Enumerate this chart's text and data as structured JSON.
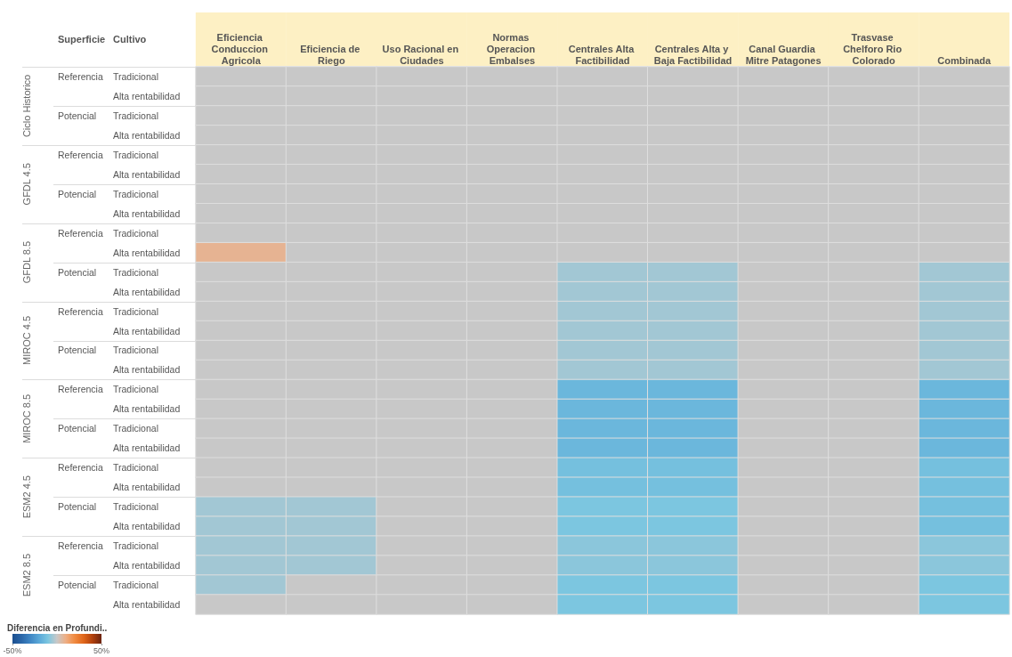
{
  "chart_data": {
    "type": "heatmap",
    "categories": [
      "Eficiencia Conduccion Agricola",
      "Eficiencia de Riego",
      "Uso Racional en Ciudades",
      "Normas Operacion Embalses",
      "Centrales Alta Factibilidad",
      "Centrales Alta y Baja Factibilidad",
      "Canal Guardia Mitre Patagones",
      "Trasvase Chelforo Rio Colorado",
      "Combinada"
    ],
    "y_categories": [
      "Tradicional",
      "Alta rentabilidad",
      "Tradicional",
      "Alta rentabilidad",
      "Tradicional",
      "Alta rentabilidad",
      "Tradicional",
      "Alta rentabilidad",
      "Tradicional",
      "Alta rentabilidad",
      "Tradicional",
      "Alta rentabilidad",
      "Tradicional",
      "Alta rentabilidad",
      "Tradicional",
      "Alta rentabilidad",
      "Tradicional",
      "Alta rentabilidad",
      "Tradicional",
      "Alta rentabilidad",
      "Tradicional",
      "Alta rentabilidad",
      "Tradicional",
      "Alta rentabilidad",
      "Tradicional",
      "Alta rentabilidad",
      "Tradicional",
      "Alta rentabilidad"
    ],
    "y2_categories": [
      "Referencia",
      null,
      "Potencial",
      null,
      "Referencia",
      null,
      "Potencial",
      null,
      "Referencia",
      null,
      "Potencial",
      null,
      "Referencia",
      null,
      "Potencial",
      null,
      "Referencia",
      null,
      "Potencial",
      null,
      "Referencia",
      null,
      "Potencial",
      null,
      "Referencia",
      null,
      "Potencial",
      null
    ],
    "ylabel": "Cultivo",
    "y2label": "Superficie",
    "annotations": [
      "Ciclo Historico",
      "GFDL 4.5",
      "GFDL 8.5",
      "MIROC 4.5",
      "MIROC 8.5",
      "ESM2 4.5",
      "ESM2 8.5"
    ],
    "cells": [
      [
        0,
        0,
        0,
        0,
        0,
        0,
        0,
        0,
        0
      ],
      [
        0,
        0,
        0,
        0,
        0,
        0,
        0,
        0,
        0
      ],
      [
        0,
        0,
        0,
        0,
        0,
        0,
        0,
        0,
        0
      ],
      [
        0,
        0,
        0,
        0,
        0,
        0,
        0,
        0,
        0
      ],
      [
        0,
        0,
        0,
        0,
        0,
        0,
        0,
        0,
        0
      ],
      [
        0,
        0,
        0,
        0,
        0,
        0,
        0,
        0,
        0
      ],
      [
        0,
        0,
        0,
        0,
        0,
        0,
        0,
        0,
        0
      ],
      [
        0,
        0,
        0,
        0,
        0,
        0,
        0,
        0,
        0
      ],
      [
        0,
        0,
        0,
        0,
        0,
        0,
        0,
        0,
        0
      ],
      [
        8,
        0,
        0,
        0,
        0,
        0,
        0,
        0,
        0
      ],
      [
        0,
        0,
        0,
        0,
        -5,
        -5,
        0,
        0,
        -5
      ],
      [
        0,
        0,
        0,
        0,
        -5,
        -5,
        0,
        0,
        -5
      ],
      [
        0,
        0,
        0,
        0,
        -5,
        -5,
        0,
        0,
        -5
      ],
      [
        0,
        0,
        0,
        0,
        -5,
        -5,
        0,
        0,
        -5
      ],
      [
        0,
        0,
        0,
        0,
        -5,
        -5,
        0,
        0,
        -5
      ],
      [
        0,
        0,
        0,
        0,
        -5,
        -5,
        0,
        0,
        -5
      ],
      [
        0,
        0,
        0,
        0,
        -15,
        -15,
        0,
        0,
        -15
      ],
      [
        0,
        0,
        0,
        0,
        -15,
        -15,
        0,
        0,
        -15
      ],
      [
        0,
        0,
        0,
        0,
        -15,
        -15,
        0,
        0,
        -15
      ],
      [
        0,
        0,
        0,
        0,
        -15,
        -15,
        0,
        0,
        -15
      ],
      [
        0,
        0,
        0,
        0,
        -12,
        -12,
        0,
        0,
        -12
      ],
      [
        0,
        0,
        0,
        0,
        -12,
        -12,
        0,
        0,
        -12
      ],
      [
        -5,
        -5,
        0,
        0,
        -10,
        -10,
        0,
        0,
        -12
      ],
      [
        -5,
        -5,
        0,
        0,
        -10,
        -10,
        0,
        0,
        -12
      ],
      [
        -5,
        -5,
        0,
        0,
        -8,
        -8,
        0,
        0,
        -8
      ],
      [
        -5,
        -5,
        0,
        0,
        -8,
        -8,
        0,
        0,
        -8
      ],
      [
        -5,
        0,
        0,
        0,
        -10,
        -10,
        0,
        0,
        -10
      ],
      [
        0,
        0,
        0,
        0,
        -10,
        -10,
        0,
        0,
        -10
      ]
    ],
    "clabel": "Diferencia en Profundi..",
    "clim": [
      -50,
      50
    ],
    "cticks": [
      {
        "value": -50,
        "label": "-50%"
      },
      {
        "value": 50,
        "label": "50%"
      }
    ]
  }
}
